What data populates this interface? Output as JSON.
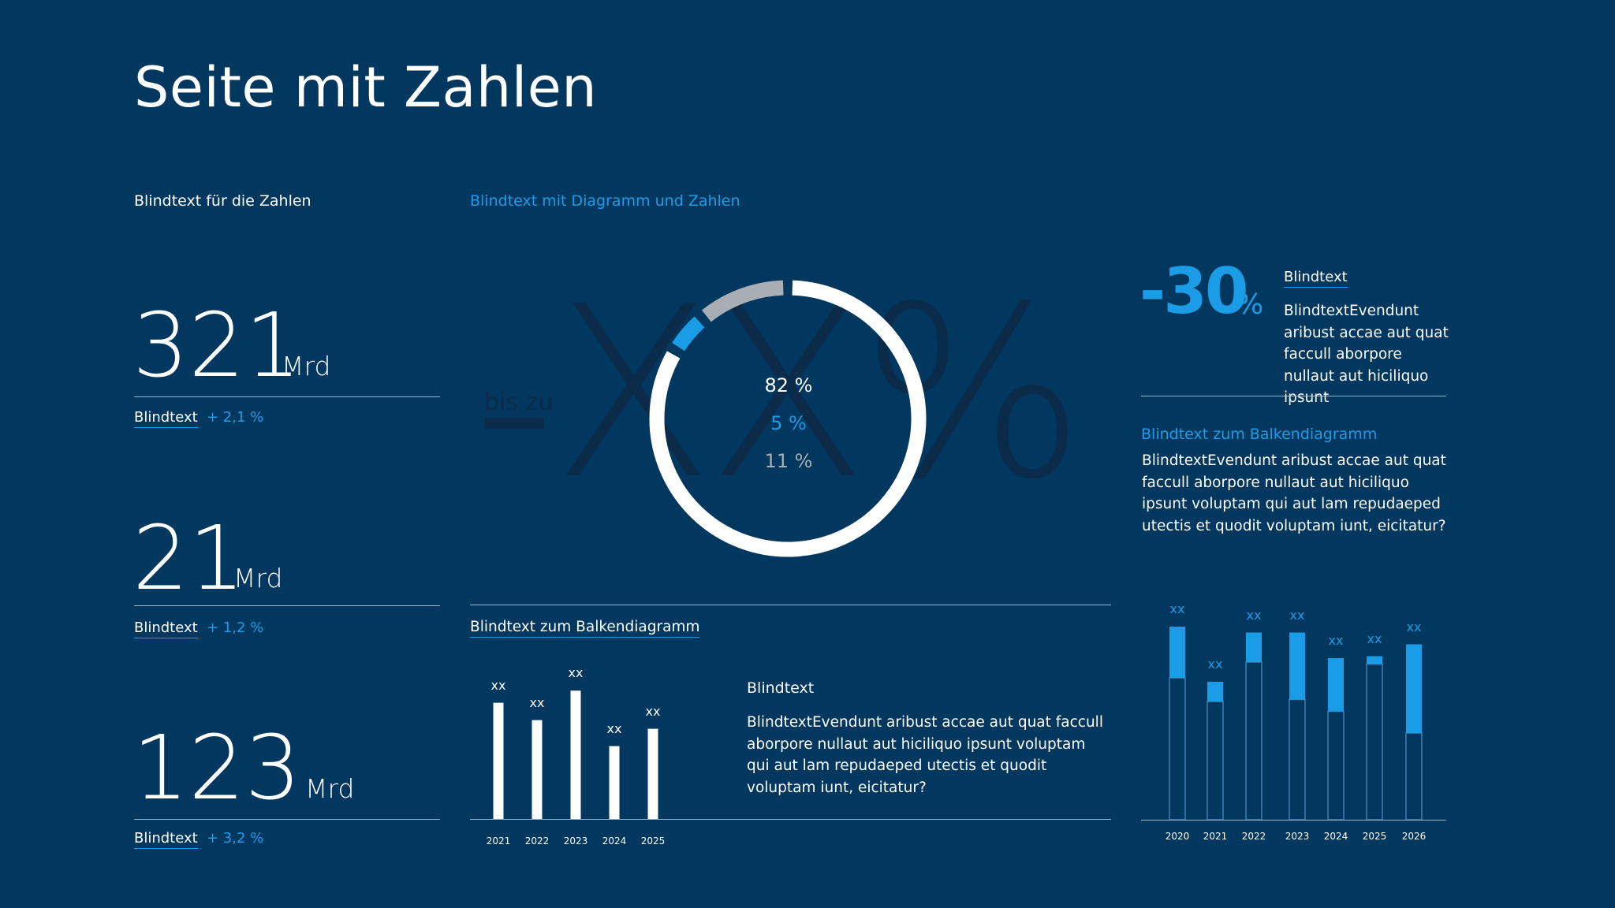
{
  "page": {
    "title": "Seite mit Zahlen"
  },
  "colors": {
    "background": "#02375f",
    "accent": "#1a9de6",
    "grey": "#a8aeb4",
    "white": "#ffffff",
    "watermark": "#0a2c4a"
  },
  "left_column": {
    "heading": "Blindtext für die Zahlen",
    "figures": [
      {
        "value": "321",
        "unit": "Mrd",
        "link": "Blindtext",
        "delta": "+ 2,1 %"
      },
      {
        "value": "21",
        "unit": "Mrd",
        "link": "Blindtext",
        "delta": "+ 1,2 %"
      },
      {
        "value": "123",
        "unit": "Mrd",
        "link": "Blindtext",
        "delta": "+ 3,2 %"
      }
    ]
  },
  "donut_section": {
    "heading": "Blindtext mit Diagramm und Zahlen",
    "watermark_prefix": "bis zu",
    "watermark_value": "XX%"
  },
  "bar_section": {
    "heading": "Blindtext zum Balkendiagramm",
    "text_title": "Blindtext",
    "text_body": "BlindtextEvendunt aribust accae aut quat faccull aborpore nullaut aut hiciliquo ipsunt voluptam qui aut lam repudaeped utectis et quodit voluptam iunt, eicitatur?"
  },
  "right_column": {
    "kpi_value": "-30",
    "kpi_unit": "%",
    "kpi_link": "Blindtext",
    "kpi_text": "BlindtextEvendunt aribust accae aut quat faccull aborpore nullaut aut hiciliquo ipsunt",
    "bar_heading": "Blindtext zum Balkendiagramm",
    "bar_text": "BlindtextEvendunt aribust accae aut quat faccull aborpore nullaut aut hiciliquo ipsunt voluptam qui aut lam repudaeped utectis et quodit voluptam iunt, eicitatur?"
  },
  "chart_data": [
    {
      "type": "pie",
      "variant": "donut",
      "segments": [
        {
          "label": "82 %",
          "value": 82,
          "color": "#ffffff"
        },
        {
          "label": "5 %",
          "value": 5,
          "color": "#1a9de6"
        },
        {
          "label": "11 %",
          "value": 11,
          "color": "#a8aeb4"
        }
      ]
    },
    {
      "type": "bar",
      "categories": [
        "2021",
        "2022",
        "2023",
        "2024",
        "2025"
      ],
      "values": [
        67,
        57,
        74,
        42,
        52
      ],
      "data_labels": [
        "xx",
        "xx",
        "xx",
        "xx",
        "xx"
      ],
      "ylim": [
        0,
        100
      ],
      "color": "#ffffff"
    },
    {
      "type": "bar",
      "stacked": true,
      "categories": [
        "2020",
        "2021",
        "2022",
        "2023",
        "2024",
        "2025",
        "2026"
      ],
      "series": [
        {
          "values": [
            72,
            60,
            80,
            61,
            55,
            79,
            44
          ],
          "style": "outline"
        },
        {
          "values": [
            26,
            10,
            15,
            34,
            27,
            4,
            45
          ],
          "color": "#1a9de6"
        }
      ],
      "data_labels": [
        "xx",
        "xx",
        "xx",
        "xx",
        "xx",
        "xx",
        "xx"
      ],
      "ylim": [
        0,
        100
      ]
    }
  ]
}
